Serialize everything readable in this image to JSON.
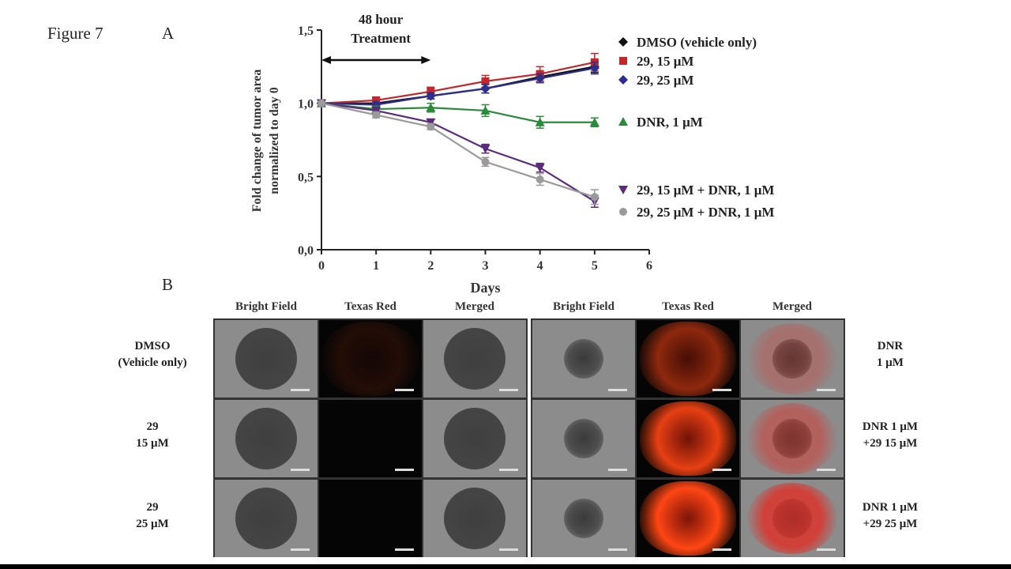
{
  "figure_label": "Figure 7",
  "panel_a_label": "A",
  "panel_b_label": "B",
  "chart_data": {
    "type": "line",
    "xlabel": "Days",
    "ylabel_line1": "Fold change of tumor area",
    "ylabel_line2": "normalized to day 0",
    "xlim": [
      0,
      6
    ],
    "ylim": [
      0.0,
      1.5
    ],
    "x_ticks": [
      "0",
      "1",
      "2",
      "3",
      "4",
      "5",
      "6"
    ],
    "y_ticks": [
      "0,0",
      "0,5",
      "1,0",
      "1,5"
    ],
    "annotation": {
      "line1": "48 hour",
      "line2": "Treatment",
      "from_x": 0,
      "to_x": 2
    },
    "x": [
      0,
      1,
      2,
      3,
      4,
      5
    ],
    "series": [
      {
        "name": "DMSO (vehicle only)",
        "color": "#111111",
        "marker": "diamond",
        "values": [
          1.0,
          1.0,
          1.05,
          1.1,
          1.18,
          1.25
        ],
        "err": [
          0.01,
          0.02,
          0.02,
          0.03,
          0.03,
          0.04
        ]
      },
      {
        "name": "29, 15 μM",
        "color": "#c0282c",
        "marker": "square",
        "values": [
          1.0,
          1.02,
          1.08,
          1.15,
          1.2,
          1.28
        ],
        "err": [
          0.01,
          0.02,
          0.03,
          0.04,
          0.05,
          0.06
        ]
      },
      {
        "name": "29, 25 μM",
        "color": "#2b2e8c",
        "marker": "diamond",
        "values": [
          1.0,
          0.99,
          1.05,
          1.1,
          1.17,
          1.24
        ],
        "err": [
          0.01,
          0.02,
          0.02,
          0.03,
          0.03,
          0.04
        ]
      },
      {
        "name": "DNR, 1 μM",
        "color": "#2a8a3a",
        "marker": "triangle-up",
        "values": [
          1.0,
          0.96,
          0.97,
          0.95,
          0.87,
          0.87
        ],
        "err": [
          0.01,
          0.02,
          0.03,
          0.04,
          0.04,
          0.03
        ]
      },
      {
        "name": "29, 15 μM + DNR, 1 μM",
        "color": "#5b2a7a",
        "marker": "triangle-down",
        "values": [
          1.0,
          0.95,
          0.87,
          0.69,
          0.56,
          0.33
        ],
        "err": [
          0.01,
          0.02,
          0.02,
          0.03,
          0.03,
          0.04
        ]
      },
      {
        "name": "29, 25 μM + DNR, 1 μM",
        "color": "#9a9a9a",
        "marker": "circle",
        "values": [
          1.0,
          0.92,
          0.84,
          0.6,
          0.48,
          0.36
        ],
        "err": [
          0.01,
          0.02,
          0.02,
          0.03,
          0.04,
          0.05
        ]
      }
    ]
  },
  "image_grid": {
    "column_headers": [
      "Bright Field",
      "Texas Red",
      "Merged",
      "Bright Field",
      "Texas Red",
      "Merged"
    ],
    "left_rows": [
      "DMSO\n(Vehicle only)",
      "29\n15 μM",
      "29\n25 μM"
    ],
    "right_rows": [
      "DNR\n1 μM",
      "DNR 1 μM\n+29  15 μM",
      "DNR 1 μM\n+29  25 μM"
    ]
  }
}
